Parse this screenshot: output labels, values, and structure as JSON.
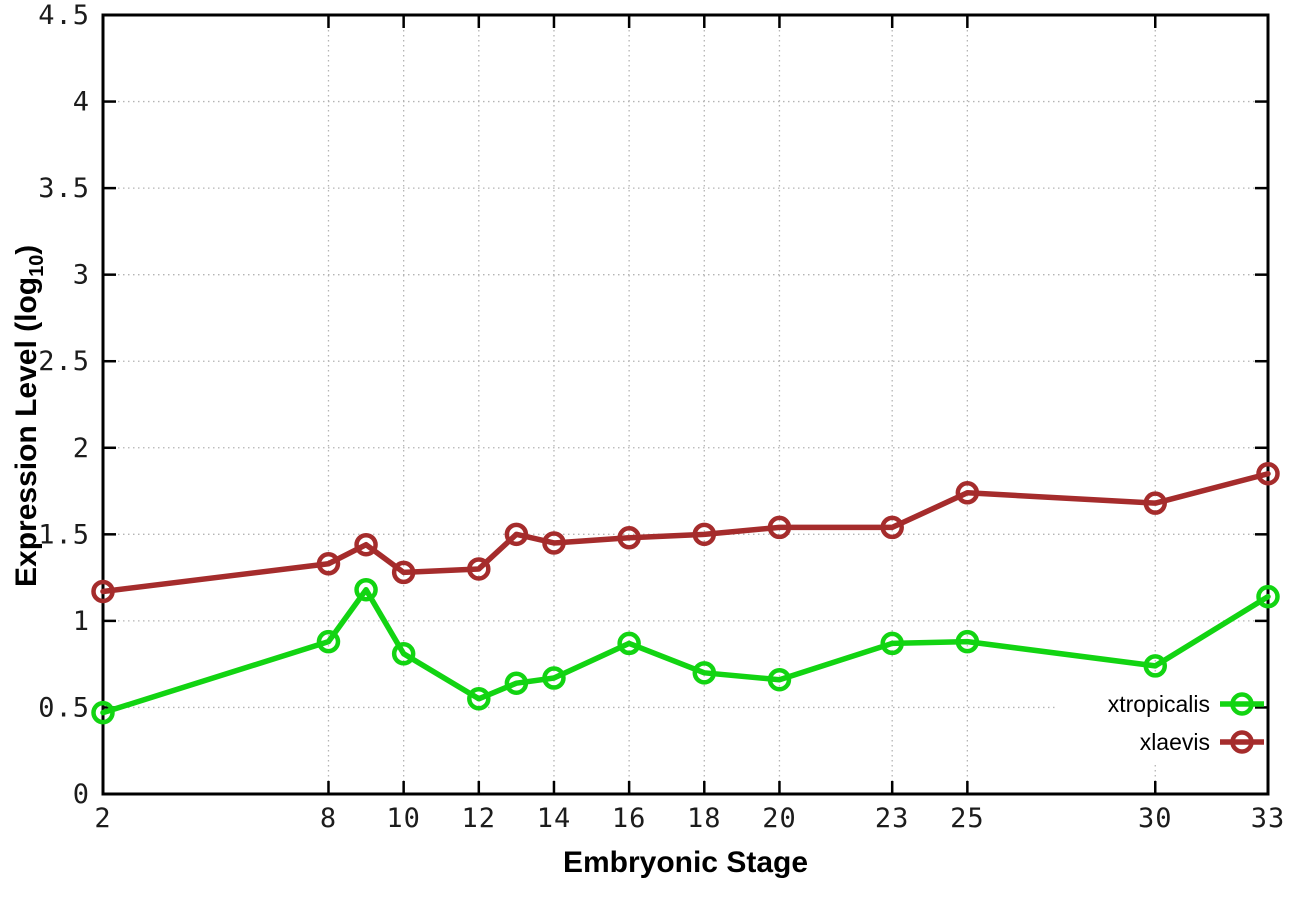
{
  "chart_data": {
    "type": "line",
    "title": "",
    "xlabel": "Embryonic Stage",
    "ylabel_parts": {
      "main": "Expression Level (log",
      "sub": "10",
      "end": ")"
    },
    "xlim": [
      2,
      33
    ],
    "ylim": [
      0,
      4.5
    ],
    "grid": true,
    "legend_position": "inside-bottom-right",
    "xticks": [
      2,
      8,
      10,
      12,
      14,
      16,
      18,
      20,
      23,
      25,
      30,
      33
    ],
    "xtick_labels": [
      "2",
      "8",
      "10",
      "12",
      "14",
      "16",
      "18",
      "20",
      "23",
      "25",
      "30",
      "33"
    ],
    "yticks": [
      0,
      0.5,
      1,
      1.5,
      2,
      2.5,
      3,
      3.5,
      4,
      4.5
    ],
    "ytick_labels": [
      "0",
      "0.5",
      "1",
      "1.5",
      "2",
      "2.5",
      "3",
      "3.5",
      "4",
      "4.5"
    ],
    "x": [
      2,
      8,
      9,
      10,
      12,
      13,
      14,
      16,
      18,
      20,
      23,
      25,
      30,
      33
    ],
    "series": [
      {
        "name": "xtropicalis",
        "color": "#12d412",
        "marker": "open-circle",
        "values": [
          0.47,
          0.88,
          1.18,
          0.81,
          0.55,
          0.64,
          0.67,
          0.87,
          0.7,
          0.66,
          0.87,
          0.88,
          0.74,
          1.14
        ]
      },
      {
        "name": "xlaevis",
        "color": "#a52c2c",
        "marker": "open-circle",
        "values": [
          1.17,
          1.33,
          1.44,
          1.28,
          1.3,
          1.5,
          1.45,
          1.48,
          1.5,
          1.54,
          1.54,
          1.74,
          1.68,
          1.85
        ]
      }
    ],
    "layout": {
      "axis_color": "#000000",
      "grid_color": "#b4b4b4",
      "background": "#ffffff"
    }
  }
}
